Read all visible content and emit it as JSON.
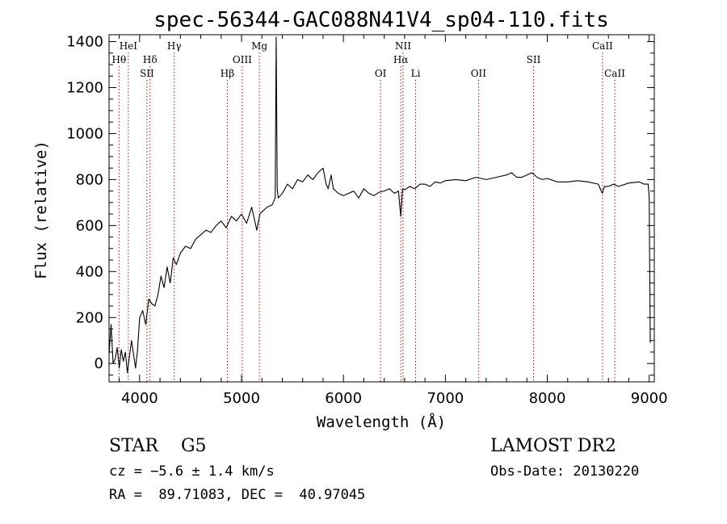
{
  "chart_data": {
    "type": "line",
    "title": "spec-56344-GAC088N41V4_sp04-110.fits",
    "xlabel": "Wavelength (Å)",
    "ylabel": "Flux (relative)",
    "xlim": [
      3700,
      9050
    ],
    "ylim": [
      -80,
      1430
    ],
    "xticks": [
      4000,
      5000,
      6000,
      7000,
      8000,
      9000
    ],
    "yticks": [
      0,
      200,
      400,
      600,
      800,
      1000,
      1200,
      1400
    ],
    "grid": false,
    "legend": "none",
    "series": [
      {
        "color": "#000000",
        "x": [
          3700,
          3720,
          3740,
          3760,
          3780,
          3800,
          3820,
          3840,
          3860,
          3880,
          3900,
          3920,
          3940,
          3960,
          3980,
          4000,
          4030,
          4060,
          4090,
          4120,
          4150,
          4180,
          4210,
          4240,
          4270,
          4300,
          4330,
          4360,
          4400,
          4450,
          4500,
          4550,
          4600,
          4650,
          4700,
          4750,
          4800,
          4850,
          4900,
          4950,
          5000,
          5050,
          5100,
          5150,
          5180,
          5200,
          5250,
          5300,
          5330,
          5340,
          5350,
          5360,
          5400,
          5450,
          5500,
          5550,
          5600,
          5650,
          5700,
          5750,
          5800,
          5830,
          5850,
          5880,
          5900,
          5950,
          6000,
          6050,
          6100,
          6150,
          6200,
          6250,
          6300,
          6350,
          6400,
          6450,
          6500,
          6540,
          6562,
          6580,
          6600,
          6650,
          6700,
          6750,
          6800,
          6850,
          6900,
          6950,
          7000,
          7100,
          7200,
          7300,
          7400,
          7500,
          7600,
          7650,
          7700,
          7750,
          7800,
          7850,
          7900,
          7950,
          8000,
          8100,
          8200,
          8300,
          8400,
          8500,
          8540,
          8560,
          8600,
          8650,
          8700,
          8800,
          8900,
          8950,
          8990,
          9000,
          9010
        ],
        "y": [
          40,
          170,
          0,
          20,
          70,
          -20,
          60,
          10,
          50,
          -40,
          30,
          100,
          40,
          -20,
          60,
          200,
          230,
          170,
          280,
          260,
          250,
          300,
          380,
          330,
          420,
          350,
          460,
          430,
          480,
          510,
          500,
          540,
          560,
          580,
          570,
          600,
          620,
          590,
          640,
          620,
          650,
          610,
          680,
          580,
          650,
          660,
          680,
          690,
          720,
          1420,
          760,
          720,
          740,
          780,
          760,
          800,
          790,
          820,
          800,
          830,
          850,
          780,
          760,
          820,
          760,
          740,
          730,
          740,
          750,
          720,
          760,
          740,
          730,
          745,
          750,
          760,
          740,
          750,
          640,
          760,
          755,
          770,
          760,
          780,
          780,
          770,
          790,
          785,
          795,
          800,
          795,
          810,
          800,
          810,
          820,
          830,
          810,
          810,
          820,
          830,
          810,
          800,
          805,
          790,
          790,
          795,
          790,
          780,
          740,
          770,
          770,
          780,
          770,
          785,
          790,
          780,
          780,
          720,
          90
        ]
      }
    ],
    "line_markers": [
      {
        "label": "HeI",
        "wavelength": 3889,
        "row": 1
      },
      {
        "label": "Hθ",
        "wavelength": 3798,
        "row": 2
      },
      {
        "label": "Hδ",
        "wavelength": 4102,
        "row": 2
      },
      {
        "label": "SII",
        "wavelength": 4072,
        "row": 3
      },
      {
        "label": "Hγ",
        "wavelength": 4340,
        "row": 1
      },
      {
        "label": "Hβ",
        "wavelength": 4861,
        "row": 3
      },
      {
        "label": "OIII",
        "wavelength": 5007,
        "row": 2
      },
      {
        "label": "Mg",
        "wavelength": 5175,
        "row": 1
      },
      {
        "label": "NII",
        "wavelength": 6585,
        "row": 1
      },
      {
        "label": "Hα",
        "wavelength": 6563,
        "row": 2
      },
      {
        "label": "OI",
        "wavelength": 6364,
        "row": 3
      },
      {
        "label": "Li",
        "wavelength": 6708,
        "row": 3
      },
      {
        "label": "OII",
        "wavelength": 7325,
        "row": 3
      },
      {
        "label": "SII",
        "wavelength": 7865,
        "row": 2
      },
      {
        "label": "CaII",
        "wavelength": 8542,
        "row": 1
      },
      {
        "label": "CaII",
        "wavelength": 8662,
        "row": 3
      }
    ],
    "marker_color": "#c00000"
  },
  "info": {
    "class_line": "STAR    G5",
    "survey": "LAMOST DR2",
    "cz": "cz = −5.6 ± 1.4 km/s",
    "obs_date": "Obs-Date: 20130220",
    "radec": "RA =  89.71083, DEC =  40.97045"
  }
}
